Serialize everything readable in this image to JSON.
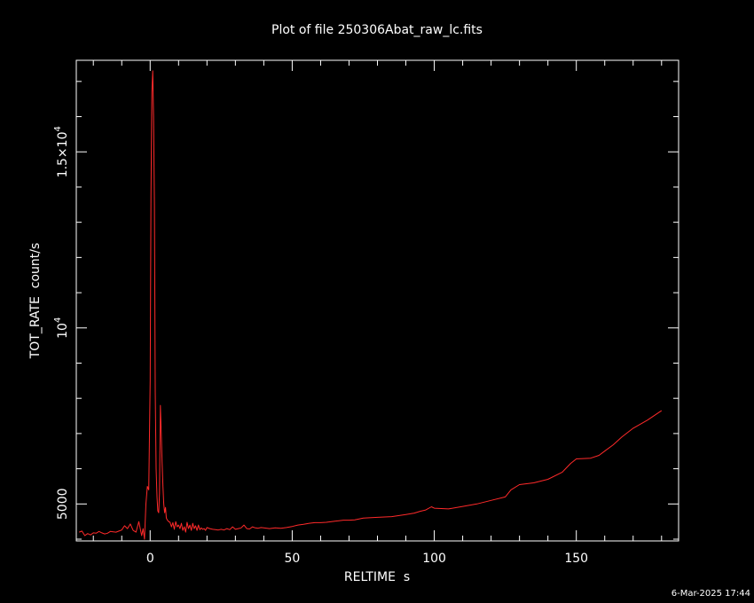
{
  "chart_data": {
    "type": "line",
    "title": "Plot of file 250306Abat_raw_lc.fits",
    "xlabel": "RELTIME  s",
    "ylabel": "TOT_RATE  count/s",
    "xlim": [
      -26,
      186
    ],
    "ylim": [
      3950,
      17600
    ],
    "x_ticks": [
      0,
      50,
      100,
      150
    ],
    "y_ticks": [
      5000,
      10000,
      15000
    ],
    "x_tick_labels": [
      "0",
      "50",
      "100",
      "150"
    ],
    "y_tick_labels": [
      {
        "mantissa": "",
        "base": "5000",
        "exp": ""
      },
      {
        "mantissa": "",
        "base": "10",
        "exp": "4"
      },
      {
        "mantissa": "1.5×",
        "base": "10",
        "exp": "4"
      }
    ],
    "grid": false,
    "series": [
      {
        "color": "#ff2a2a",
        "x": [
          -25,
          -24,
          -23,
          -22,
          -21,
          -20,
          -19,
          -18,
          -17,
          -16,
          -15,
          -14,
          -13,
          -12,
          -11,
          -10,
          -9,
          -8,
          -7,
          -6,
          -5,
          -4,
          -3,
          -2.5,
          -2,
          -1.5,
          -1,
          -0.5,
          0,
          0.3,
          0.6,
          0.9,
          1.2,
          1.5,
          1.8,
          2.1,
          2.4,
          2.7,
          3.0,
          3.3,
          3.6,
          3.9,
          4.2,
          4.5,
          4.8,
          5.1,
          5.4,
          5.7,
          6.0,
          6.5,
          7,
          7.5,
          8,
          8.5,
          9,
          9.5,
          10,
          10.5,
          11,
          11.5,
          12,
          12.5,
          13,
          13.5,
          14,
          14.5,
          15,
          15.5,
          16,
          16.5,
          17,
          17.5,
          18,
          18.5,
          19,
          19.5,
          20,
          21,
          22,
          23,
          24,
          25,
          26,
          27,
          28,
          29,
          30,
          31,
          32,
          33,
          34,
          35,
          36,
          37,
          38,
          39,
          40,
          42,
          44,
          46,
          48,
          50,
          52,
          54,
          56,
          58,
          60,
          62,
          65,
          68,
          70,
          72,
          75,
          80,
          85,
          90,
          93,
          95,
          97,
          99,
          100,
          105,
          110,
          115,
          120,
          125,
          127,
          130,
          135,
          140,
          145,
          148,
          150,
          155,
          158,
          160,
          163,
          166,
          170,
          175,
          180
        ],
        "y": [
          4200,
          4230,
          4100,
          4160,
          4120,
          4180,
          4170,
          4220,
          4180,
          4150,
          4170,
          4220,
          4210,
          4200,
          4230,
          4260,
          4380,
          4300,
          4430,
          4250,
          4200,
          4500,
          4100,
          4300,
          4000,
          5000,
          5500,
          5400,
          8500,
          13800,
          16700,
          17300,
          16000,
          13500,
          8200,
          6000,
          5200,
          4800,
          4750,
          5300,
          7800,
          7000,
          6200,
          5500,
          5000,
          4750,
          4900,
          4600,
          4550,
          4500,
          4480,
          4350,
          4470,
          4280,
          4500,
          4350,
          4400,
          4300,
          4450,
          4250,
          4350,
          4200,
          4480,
          4300,
          4400,
          4250,
          4450,
          4300,
          4380,
          4250,
          4400,
          4270,
          4320,
          4280,
          4300,
          4250,
          4330,
          4300,
          4280,
          4270,
          4260,
          4280,
          4260,
          4300,
          4270,
          4350,
          4280,
          4300,
          4320,
          4400,
          4300,
          4290,
          4350,
          4320,
          4310,
          4330,
          4320,
          4300,
          4320,
          4310,
          4330,
          4360,
          4400,
          4420,
          4450,
          4470,
          4470,
          4480,
          4510,
          4540,
          4540,
          4550,
          4600,
          4620,
          4640,
          4700,
          4740,
          4790,
          4830,
          4920,
          4880,
          4860,
          4930,
          5000,
          5100,
          5200,
          5400,
          5550,
          5600,
          5700,
          5900,
          6150,
          6280,
          6300,
          6380,
          6500,
          6680,
          6900,
          7150,
          7380,
          7650
        ]
      }
    ]
  },
  "footer": {
    "timestamp": "6-Mar-2025 17:44"
  }
}
